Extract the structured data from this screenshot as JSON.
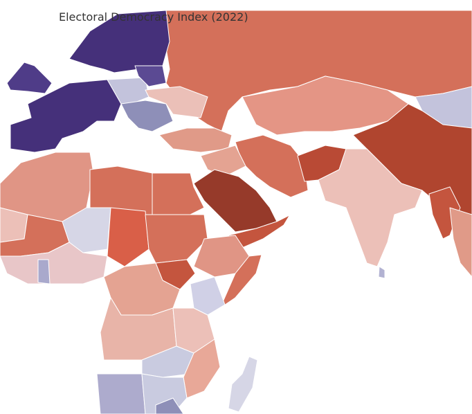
{
  "title": "Electoral Democracy Index (2022)"
}
